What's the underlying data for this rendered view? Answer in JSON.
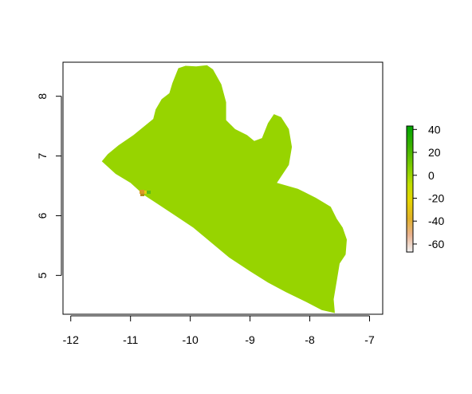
{
  "map": {
    "region": "Liberia",
    "fill_color": "#97D400",
    "frame_color": "#000000",
    "x_axis": {
      "range": [
        -12.13,
        -6.78
      ],
      "ticks": [
        -12,
        -11,
        -10,
        -9,
        -8,
        -7
      ],
      "tick_labels": [
        "-12",
        "-11",
        "-10",
        "-9",
        "-8",
        "-7"
      ]
    },
    "y_axis": {
      "range": [
        4.35,
        8.57
      ],
      "ticks": [
        5,
        6,
        7,
        8
      ],
      "tick_labels": [
        "5",
        "6",
        "7",
        "8"
      ]
    },
    "outline_lonlat": [
      [
        -11.48,
        6.91
      ],
      [
        -11.38,
        7.03
      ],
      [
        -11.2,
        7.18
      ],
      [
        -10.95,
        7.35
      ],
      [
        -10.62,
        7.62
      ],
      [
        -10.58,
        7.78
      ],
      [
        -10.48,
        7.95
      ],
      [
        -10.35,
        8.05
      ],
      [
        -10.3,
        8.22
      ],
      [
        -10.2,
        8.47
      ],
      [
        -10.08,
        8.51
      ],
      [
        -9.9,
        8.5
      ],
      [
        -9.72,
        8.52
      ],
      [
        -9.62,
        8.45
      ],
      [
        -9.48,
        8.2
      ],
      [
        -9.4,
        7.9
      ],
      [
        -9.4,
        7.6
      ],
      [
        -9.25,
        7.45
      ],
      [
        -9.05,
        7.35
      ],
      [
        -8.93,
        7.25
      ],
      [
        -8.8,
        7.3
      ],
      [
        -8.7,
        7.55
      ],
      [
        -8.6,
        7.7
      ],
      [
        -8.48,
        7.65
      ],
      [
        -8.35,
        7.45
      ],
      [
        -8.3,
        7.15
      ],
      [
        -8.35,
        6.85
      ],
      [
        -8.55,
        6.55
      ],
      [
        -8.2,
        6.45
      ],
      [
        -7.9,
        6.3
      ],
      [
        -7.65,
        6.15
      ],
      [
        -7.55,
        5.95
      ],
      [
        -7.45,
        5.8
      ],
      [
        -7.38,
        5.6
      ],
      [
        -7.4,
        5.35
      ],
      [
        -7.5,
        5.2
      ],
      [
        -7.55,
        4.9
      ],
      [
        -7.6,
        4.6
      ],
      [
        -7.58,
        4.37
      ],
      [
        -7.8,
        4.42
      ],
      [
        -8.05,
        4.55
      ],
      [
        -8.4,
        4.72
      ],
      [
        -8.7,
        4.88
      ],
      [
        -9.0,
        5.07
      ],
      [
        -9.35,
        5.3
      ],
      [
        -9.65,
        5.55
      ],
      [
        -9.95,
        5.8
      ],
      [
        -10.25,
        6.0
      ],
      [
        -10.55,
        6.2
      ],
      [
        -10.78,
        6.35
      ],
      [
        -11.0,
        6.55
      ],
      [
        -11.25,
        6.7
      ],
      [
        -11.48,
        6.91
      ]
    ]
  },
  "colorbar": {
    "min": -67,
    "max": 43,
    "ticks": [
      40,
      20,
      0,
      -20,
      -40,
      -60
    ],
    "tick_labels": [
      "40",
      "20",
      "0",
      "-20",
      "-40",
      "-60"
    ],
    "stops": [
      {
        "value": -67,
        "color": "#F2F2F2"
      },
      {
        "value": -52,
        "color": "#EAB28F"
      },
      {
        "value": -38,
        "color": "#E1B12A"
      },
      {
        "value": -22,
        "color": "#E6D500"
      },
      {
        "value": -8,
        "color": "#C1DE00"
      },
      {
        "value": 5,
        "color": "#87D000"
      },
      {
        "value": 25,
        "color": "#3CB200"
      },
      {
        "value": 43,
        "color": "#00A600"
      }
    ]
  }
}
